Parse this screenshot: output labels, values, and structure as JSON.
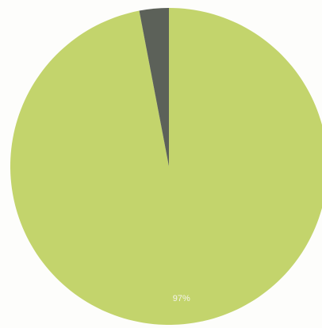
{
  "chart_data": {
    "type": "pie",
    "values": [
      97,
      3
    ],
    "value_labels": [
      "97%",
      null
    ],
    "colors": [
      "#c3d46c",
      "#5c6159"
    ]
  }
}
